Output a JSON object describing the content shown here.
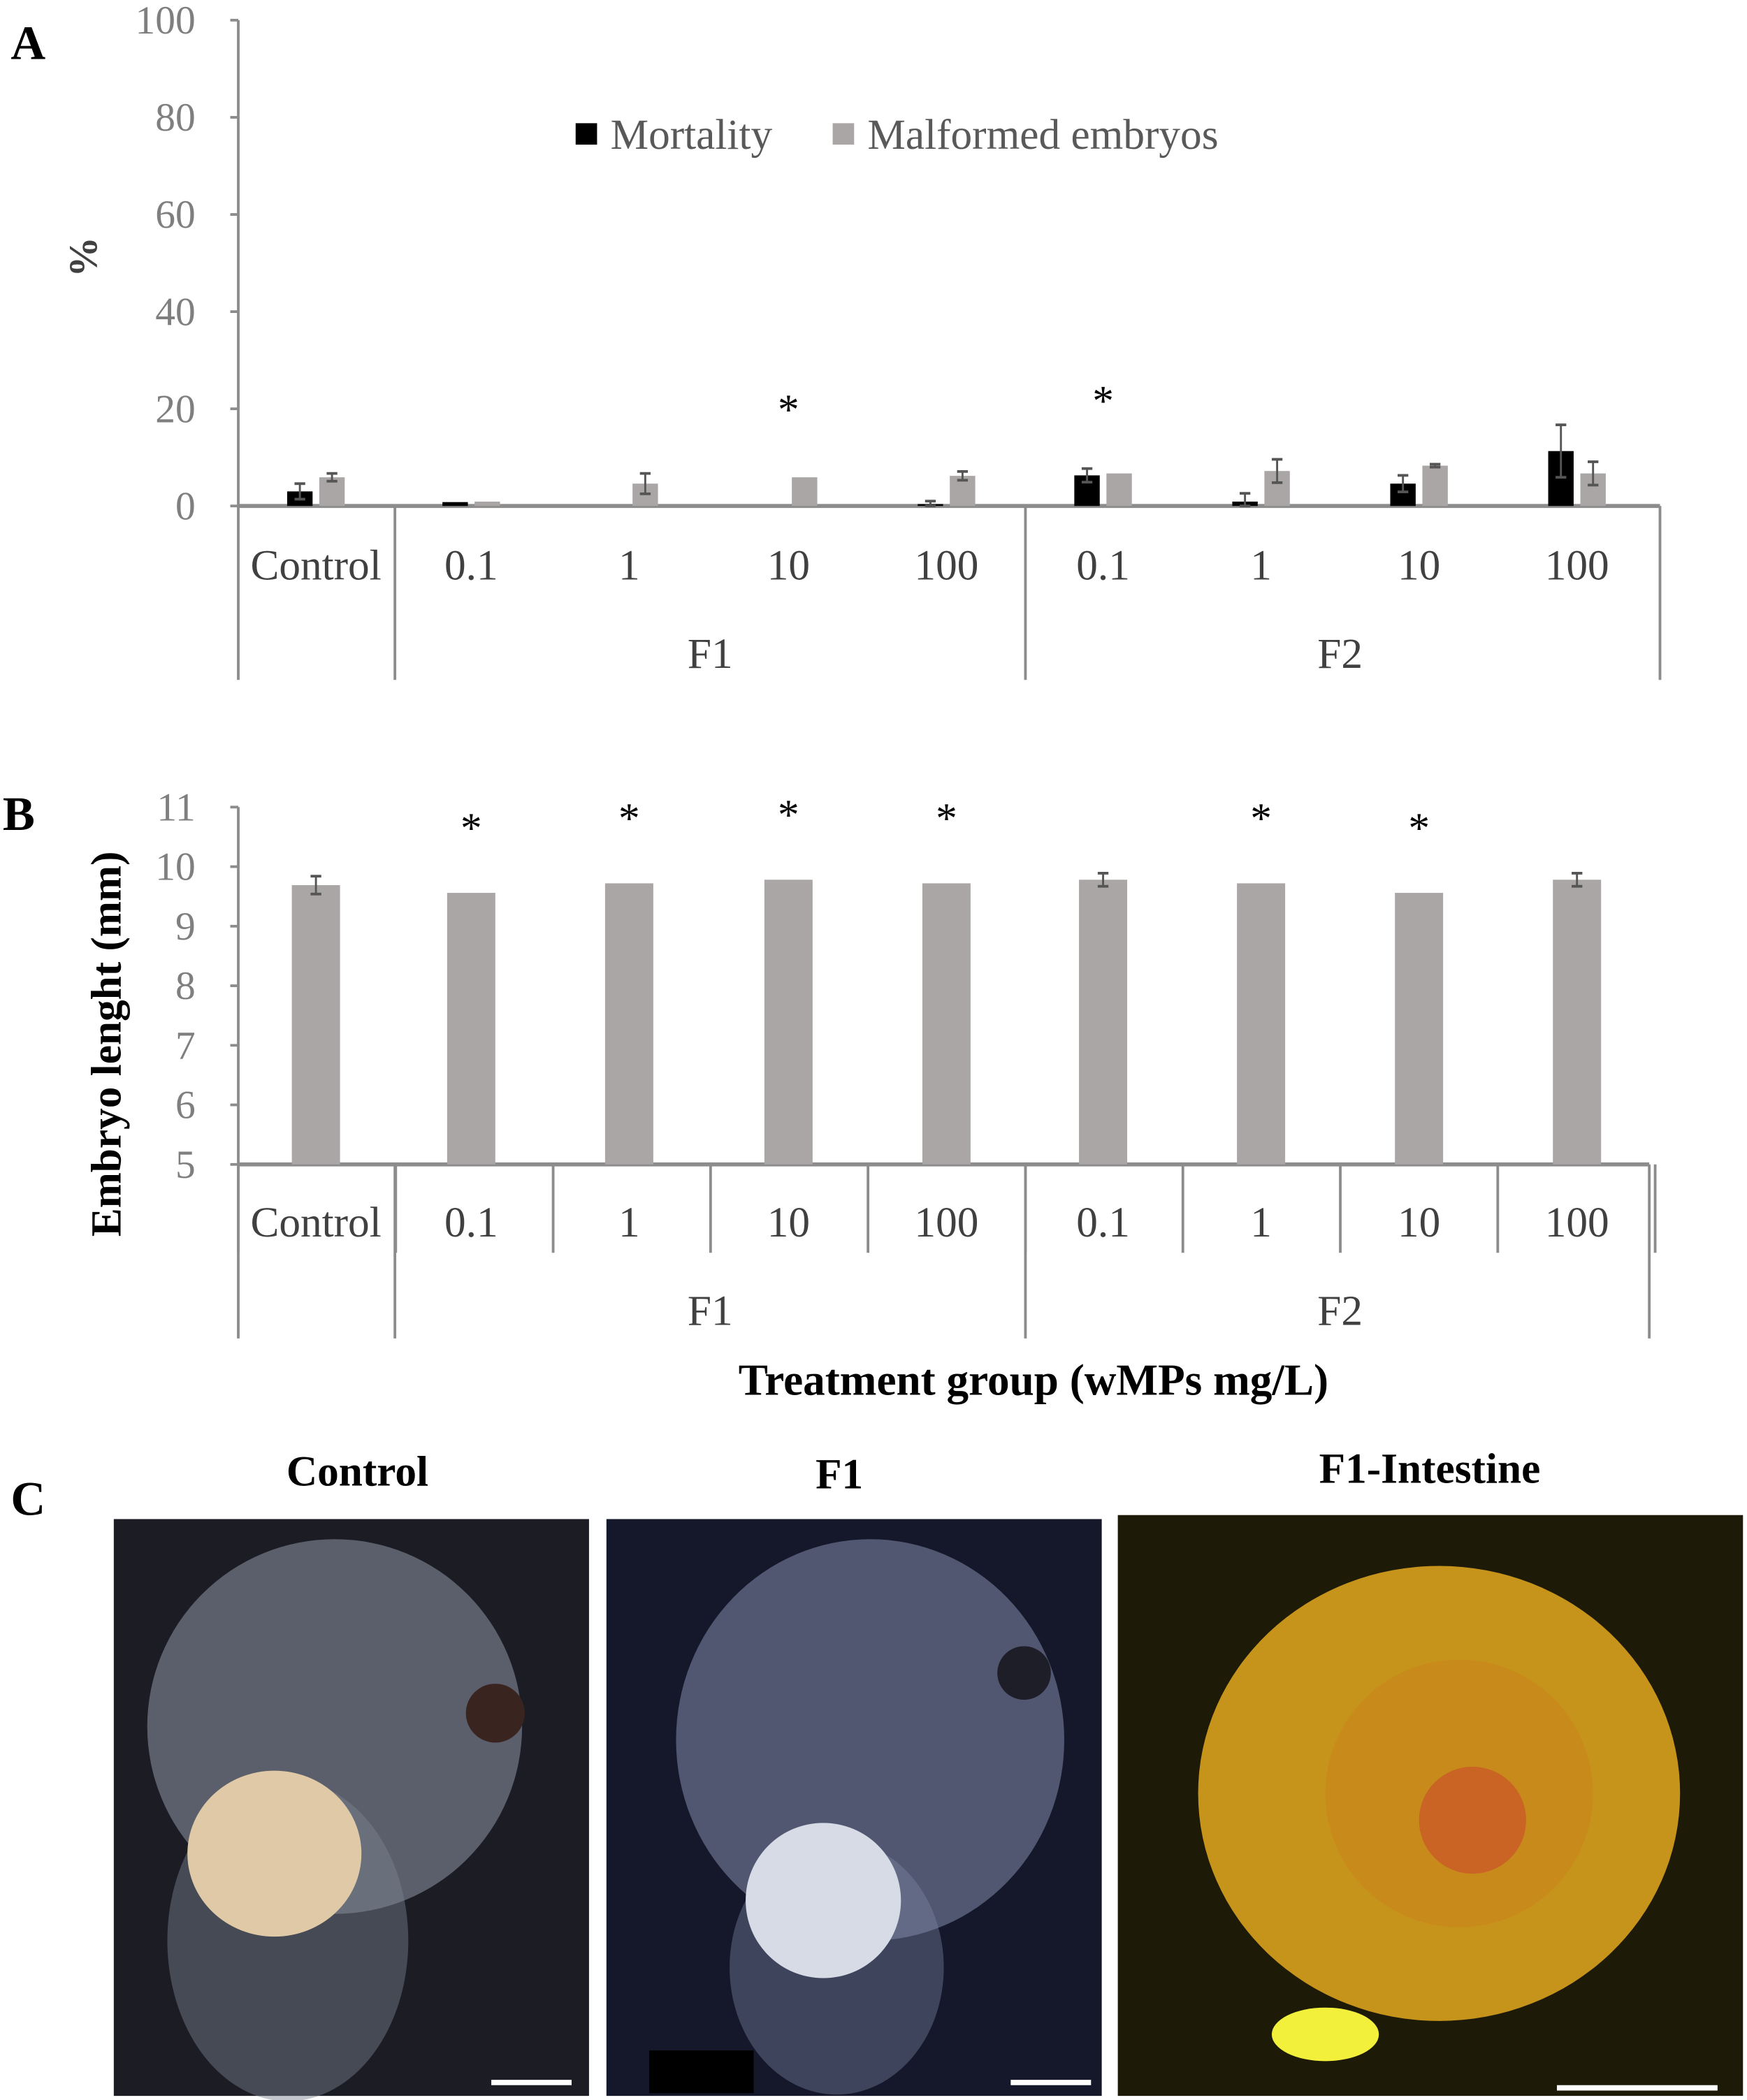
{
  "panel_labels": {
    "a": "A",
    "b": "B",
    "c": "C"
  },
  "chart_data": [
    {
      "type": "bar",
      "title": "",
      "ylabel": "%",
      "xlabel": "",
      "ylim": [
        0,
        100
      ],
      "yticks": [
        "0",
        "20",
        "40",
        "60",
        "80",
        "100"
      ],
      "categories": [
        "Control",
        "0.1",
        "1",
        "10",
        "100",
        "0.1",
        "1",
        "10",
        "100"
      ],
      "groups": [
        {
          "label": "F1",
          "from": 1,
          "to": 4
        },
        {
          "label": "F2",
          "from": 5,
          "to": 8
        }
      ],
      "legend": {
        "position": "top-center",
        "entries": [
          "Mortality",
          "Malformed embryos"
        ]
      },
      "series": [
        {
          "name": "Mortality",
          "color": "#000000",
          "values": [
            3.0,
            0.8,
            0,
            0,
            0.4,
            6.3,
            0.9,
            4.6,
            11.3
          ],
          "errors": [
            1.6,
            0,
            0,
            0,
            0.6,
            1.4,
            1.7,
            1.7,
            5.4
          ]
        },
        {
          "name": "Malformed embryos",
          "color": "#a9a6a5",
          "values": [
            5.9,
            0.9,
            4.6,
            5.9,
            6.2,
            6.7,
            7.2,
            8.3,
            6.7
          ],
          "errors": [
            0.8,
            0,
            2.1,
            0,
            0.9,
            0,
            2.4,
            0.3,
            2.4
          ]
        }
      ],
      "significance_marker": "*",
      "significant": [
        3,
        5
      ]
    },
    {
      "type": "bar",
      "title": "",
      "ylabel": "Embryo lenght (mm)",
      "xlabel": "Treatment group (wMPs mg/L)",
      "ylim": [
        5,
        11
      ],
      "yticks": [
        "5",
        "6",
        "7",
        "8",
        "9",
        "10",
        "11"
      ],
      "categories": [
        "Control",
        "0.1",
        "1",
        "10",
        "100",
        "0.1",
        "1",
        "10",
        "100"
      ],
      "groups": [
        {
          "label": "F1",
          "from": 1,
          "to": 4
        },
        {
          "label": "F2",
          "from": 5,
          "to": 8
        }
      ],
      "series": [
        {
          "name": "Embryo length",
          "color": "#a9a6a5",
          "values": [
            9.69,
            9.56,
            9.72,
            9.78,
            9.72,
            9.78,
            9.72,
            9.56,
            9.78
          ],
          "errors": [
            0.15,
            0,
            0,
            0,
            0,
            0.11,
            0,
            0,
            0.11
          ]
        }
      ],
      "significance_marker": "*",
      "significant": [
        1,
        2,
        3,
        4,
        6,
        7
      ]
    }
  ],
  "images": [
    {
      "title": "Control"
    },
    {
      "title": "F1"
    },
    {
      "title": "F1-Intestine"
    }
  ]
}
